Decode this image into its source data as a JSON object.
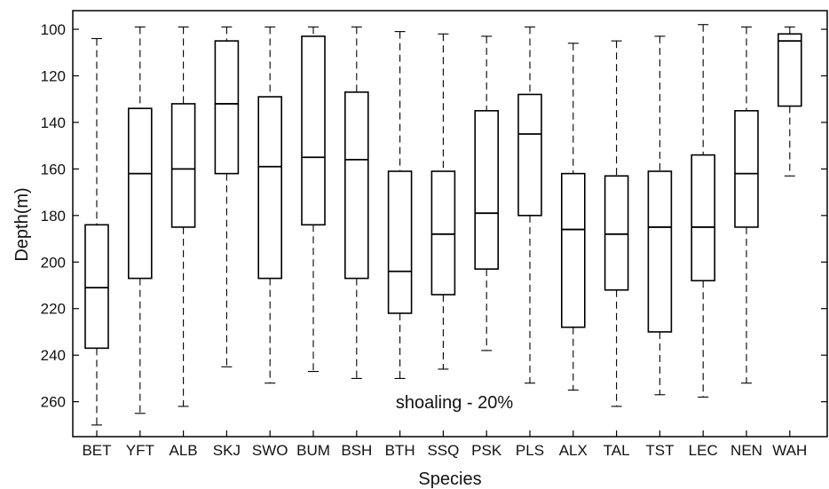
{
  "chart_data": {
    "type": "box",
    "xlabel": "Species",
    "ylabel": "Depth(m)",
    "y_axis_inverted": true,
    "ylim": [
      92,
      275
    ],
    "yticks": [
      100,
      120,
      140,
      160,
      180,
      200,
      220,
      240,
      260
    ],
    "annotation": "shoaling - 20%",
    "categories": [
      "BET",
      "YFT",
      "ALB",
      "SKJ",
      "SWO",
      "BUM",
      "BSH",
      "BTH",
      "SSQ",
      "PSK",
      "PLS",
      "ALX",
      "TAL",
      "TST",
      "LEC",
      "NEN",
      "WAH"
    ],
    "series": [
      {
        "category": "BET",
        "whisker_low": 104,
        "q1": 184,
        "median": 211,
        "q3": 237,
        "whisker_high": 270
      },
      {
        "category": "YFT",
        "whisker_low": 99,
        "q1": 134,
        "median": 162,
        "q3": 207,
        "whisker_high": 265
      },
      {
        "category": "ALB",
        "whisker_low": 99,
        "q1": 132,
        "median": 160,
        "q3": 185,
        "whisker_high": 262
      },
      {
        "category": "SKJ",
        "whisker_low": 99,
        "q1": 105,
        "median": 132,
        "q3": 162,
        "whisker_high": 245
      },
      {
        "category": "SWO",
        "whisker_low": 99,
        "q1": 129,
        "median": 159,
        "q3": 207,
        "whisker_high": 252
      },
      {
        "category": "BUM",
        "whisker_low": 99,
        "q1": 103,
        "median": 155,
        "q3": 184,
        "whisker_high": 247
      },
      {
        "category": "BSH",
        "whisker_low": 99,
        "q1": 127,
        "median": 156,
        "q3": 207,
        "whisker_high": 250
      },
      {
        "category": "BTH",
        "whisker_low": 101,
        "q1": 161,
        "median": 204,
        "q3": 222,
        "whisker_high": 250
      },
      {
        "category": "SSQ",
        "whisker_low": 102,
        "q1": 161,
        "median": 188,
        "q3": 214,
        "whisker_high": 246
      },
      {
        "category": "PSK",
        "whisker_low": 103,
        "q1": 135,
        "median": 179,
        "q3": 203,
        "whisker_high": 238
      },
      {
        "category": "PLS",
        "whisker_low": 99,
        "q1": 128,
        "median": 145,
        "q3": 180,
        "whisker_high": 252
      },
      {
        "category": "ALX",
        "whisker_low": 106,
        "q1": 162,
        "median": 186,
        "q3": 228,
        "whisker_high": 255
      },
      {
        "category": "TAL",
        "whisker_low": 105,
        "q1": 163,
        "median": 188,
        "q3": 212,
        "whisker_high": 262
      },
      {
        "category": "TST",
        "whisker_low": 103,
        "q1": 161,
        "median": 185,
        "q3": 230,
        "whisker_high": 257
      },
      {
        "category": "LEC",
        "whisker_low": 98,
        "q1": 154,
        "median": 185,
        "q3": 208,
        "whisker_high": 258
      },
      {
        "category": "NEN",
        "whisker_low": 99,
        "q1": 135,
        "median": 162,
        "q3": 185,
        "whisker_high": 252
      },
      {
        "category": "WAH",
        "whisker_low": 99,
        "q1": 102,
        "median": 105,
        "q3": 133,
        "whisker_high": 163
      }
    ],
    "grid": false,
    "legend": "none",
    "colors": {
      "box": "#000000",
      "background": "#ffffff"
    }
  }
}
